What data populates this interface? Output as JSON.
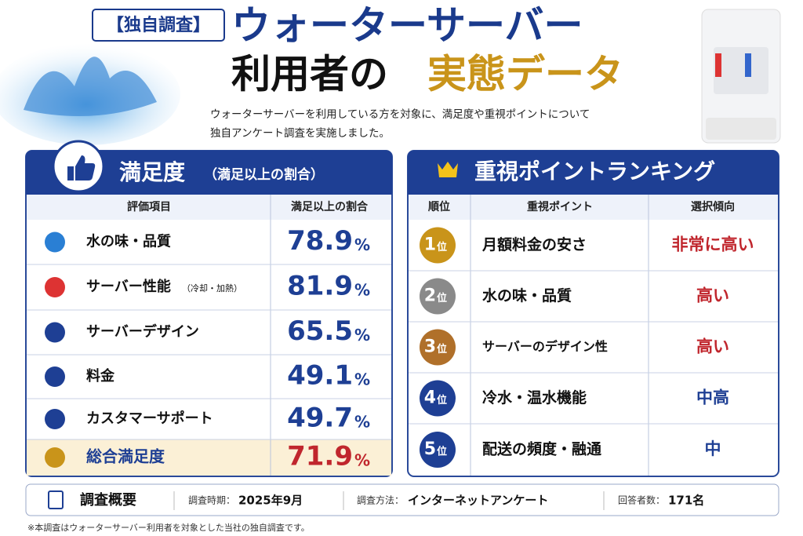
{
  "header": {
    "tag": "【独自調査】",
    "title_line1": "ウォーターサーバー",
    "title_line2a": "利用者の",
    "title_line2b": "実態データ",
    "description": [
      "ウォーターサーバーを利用している方を対象に、満足度や重視ポイントについて",
      "独自アンケート調査を実施しました。"
    ]
  },
  "satisfaction": {
    "title": "満足度",
    "subtitle": "（満足以上の割合）",
    "columns": [
      "評価項目",
      "満足以上の割合"
    ],
    "rows": [
      {
        "label": "水の味・品質",
        "value": 78.9,
        "unit": "%"
      },
      {
        "label": "サーバー性能",
        "note": "（冷却・加熱）",
        "value": 81.9,
        "unit": "%"
      },
      {
        "label": "サーバーデザイン",
        "value": 65.5,
        "unit": "%"
      },
      {
        "label": "料金",
        "value": 49.1,
        "unit": "%"
      },
      {
        "label": "カスタマーサポート",
        "value": 49.7,
        "unit": "%"
      },
      {
        "label": "総合満足度",
        "value": 71.9,
        "unit": "%"
      }
    ]
  },
  "ranking": {
    "title": "重視ポイントランキング",
    "columns": [
      "順位",
      "重視ポイント",
      "選択傾向"
    ],
    "rows": [
      {
        "rank": 1,
        "suffix": "位",
        "point": "月額料金の安さ",
        "trend": "非常に高い"
      },
      {
        "rank": 2,
        "suffix": "位",
        "point": "水の味・品質",
        "trend": "高い"
      },
      {
        "rank": 3,
        "suffix": "位",
        "point": "サーバーのデザイン性",
        "trend": "高い"
      },
      {
        "rank": 4,
        "suffix": "位",
        "point": "冷水・温水機能",
        "trend": "中高"
      },
      {
        "rank": 5,
        "suffix": "位",
        "point": "配送の頻度・融通",
        "trend": "中"
      }
    ]
  },
  "summary": {
    "title": "調査概要",
    "items": [
      {
        "label": "調査時期：",
        "value": "2025年9月"
      },
      {
        "label": "調査方法：",
        "value": "インターネットアンケート"
      },
      {
        "label": "回答者数：",
        "value": "171名"
      }
    ]
  },
  "footnote": "※本調査はウォーターサーバー利用者を対象とした当社の独自調査です。"
}
